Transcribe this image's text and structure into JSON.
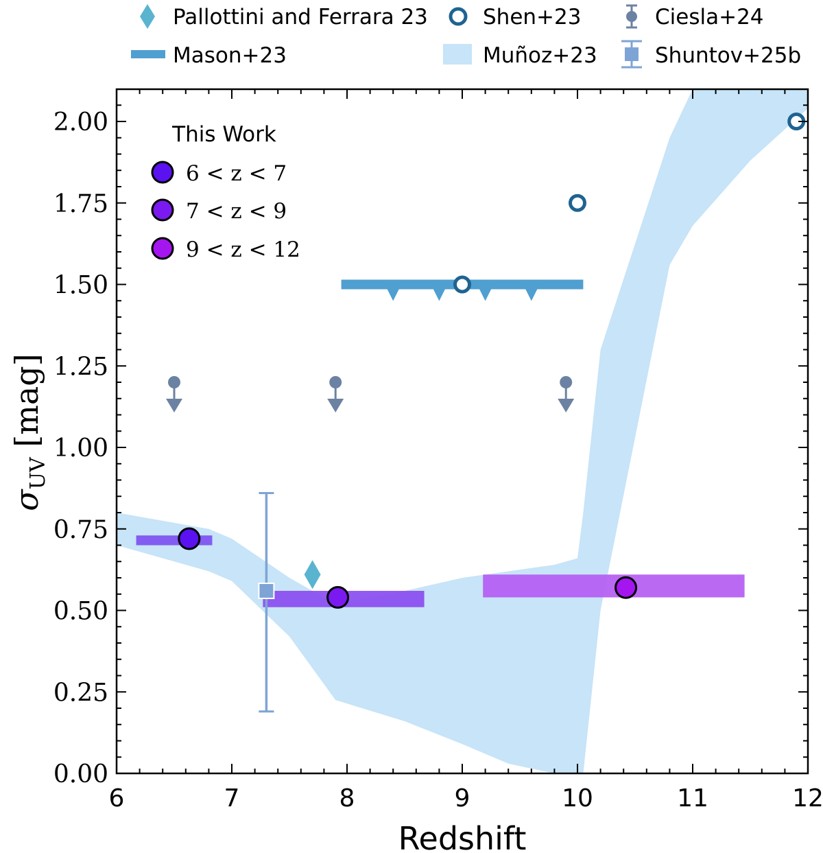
{
  "chart_data": {
    "type": "scatter",
    "title": "",
    "xlabel": "Redshift",
    "ylabel": {
      "symbol": "σ",
      "subscript": "UV",
      "unit": "[mag]"
    },
    "xlim": [
      6,
      12
    ],
    "ylim": [
      0,
      2.1
    ],
    "x_ticks": [
      "6",
      "7",
      "8",
      "9",
      "10",
      "11",
      "12"
    ],
    "y_ticks": [
      "0.00",
      "0.25",
      "0.50",
      "0.75",
      "1.00",
      "1.25",
      "1.50",
      "1.75",
      "2.00"
    ],
    "legend_top": {
      "placement": "above plot",
      "entries": [
        {
          "label": "Pallottini and Ferrara 23",
          "marker": "diamond",
          "color": "#5ab4cf"
        },
        {
          "label": "Shen+23",
          "marker": "open-circle",
          "color": "#1f6391"
        },
        {
          "label": "Ciesla+24",
          "marker": "circle-errorbar",
          "color": "#6c82a3"
        },
        {
          "label": "Mason+23",
          "marker": "thick-line",
          "color": "#4f9fd1"
        },
        {
          "label": "Muñoz+23",
          "marker": "band",
          "color": "#c7e4f8"
        },
        {
          "label": "Shuntov+25b",
          "marker": "square-errorbar",
          "color": "#7ea4d6"
        }
      ]
    },
    "legend_inner": {
      "placement": "upper-left",
      "title": "This Work",
      "entries": [
        {
          "label": "6 < z < 7",
          "color": "#5a12f0"
        },
        {
          "label": "7 < z < 9",
          "color": "#7b1af0"
        },
        {
          "label": "9 < z < 12",
          "color": "#a515f0"
        }
      ]
    },
    "series": [
      {
        "name": "Muñoz+23",
        "kind": "band",
        "color": "#c7e4f8",
        "x": [
          6.0,
          6.8,
          7.0,
          7.5,
          7.9,
          8.5,
          9.0,
          9.4,
          9.8,
          10.0,
          10.05,
          10.2,
          10.8,
          11.0,
          11.5,
          12.0
        ],
        "lower": [
          0.7,
          0.62,
          0.59,
          0.42,
          0.225,
          0.16,
          0.09,
          0.03,
          0.0,
          0.0,
          0.0,
          0.5,
          1.56,
          1.68,
          1.88,
          2.04
        ],
        "upper": [
          0.8,
          0.75,
          0.72,
          0.6,
          0.52,
          0.56,
          0.6,
          0.62,
          0.64,
          0.66,
          0.8,
          1.3,
          1.95,
          2.1,
          2.1,
          2.1
        ]
      },
      {
        "name": "Mason+23",
        "kind": "upper-limit-bar",
        "color": "#4f9fd1",
        "x_range": [
          7.95,
          10.05
        ],
        "y": 1.5,
        "arrow_x": [
          8.4,
          8.8,
          9.2,
          9.6
        ]
      },
      {
        "name": "Shen+23",
        "kind": "open-circle",
        "color": "#1f6391",
        "x": [
          9.0,
          10.0,
          11.9
        ],
        "y": [
          1.5,
          1.75,
          2.0
        ]
      },
      {
        "name": "Ciesla+24",
        "kind": "upper-limit-point",
        "color": "#6c82a3",
        "x": [
          6.5,
          7.9,
          9.9
        ],
        "y": [
          1.2,
          1.2,
          1.2
        ]
      },
      {
        "name": "Pallottini and Ferrara 23",
        "kind": "diamond",
        "color": "#5ab4cf",
        "x": [
          7.7
        ],
        "y": [
          0.61
        ]
      },
      {
        "name": "Shuntov+25b",
        "kind": "square-errorbar",
        "color": "#7ea4d6",
        "x": [
          7.3
        ],
        "y": [
          0.56
        ],
        "y_low": [
          0.19
        ],
        "y_high": [
          0.86
        ]
      },
      {
        "name": "This Work",
        "kind": "point-with-range",
        "points": [
          {
            "label": "6 < z < 7",
            "x": 6.63,
            "y": 0.72,
            "x_range": [
              6.17,
              6.83
            ],
            "bar_y": [
              0.7,
              0.73
            ],
            "bar_color": "#7d50f0",
            "point_color": "#5a12f0"
          },
          {
            "label": "7 < z < 9",
            "x": 7.92,
            "y": 0.54,
            "x_range": [
              7.27,
              8.67
            ],
            "bar_y": [
              0.51,
              0.56
            ],
            "bar_color": "#8a4cf0",
            "point_color": "#7b1af0"
          },
          {
            "label": "9 < z < 12",
            "x": 10.42,
            "y": 0.57,
            "x_range": [
              9.18,
              11.45
            ],
            "bar_y": [
              0.54,
              0.61
            ],
            "bar_color": "#b45cf2",
            "point_color": "#a515f0"
          }
        ]
      }
    ]
  }
}
